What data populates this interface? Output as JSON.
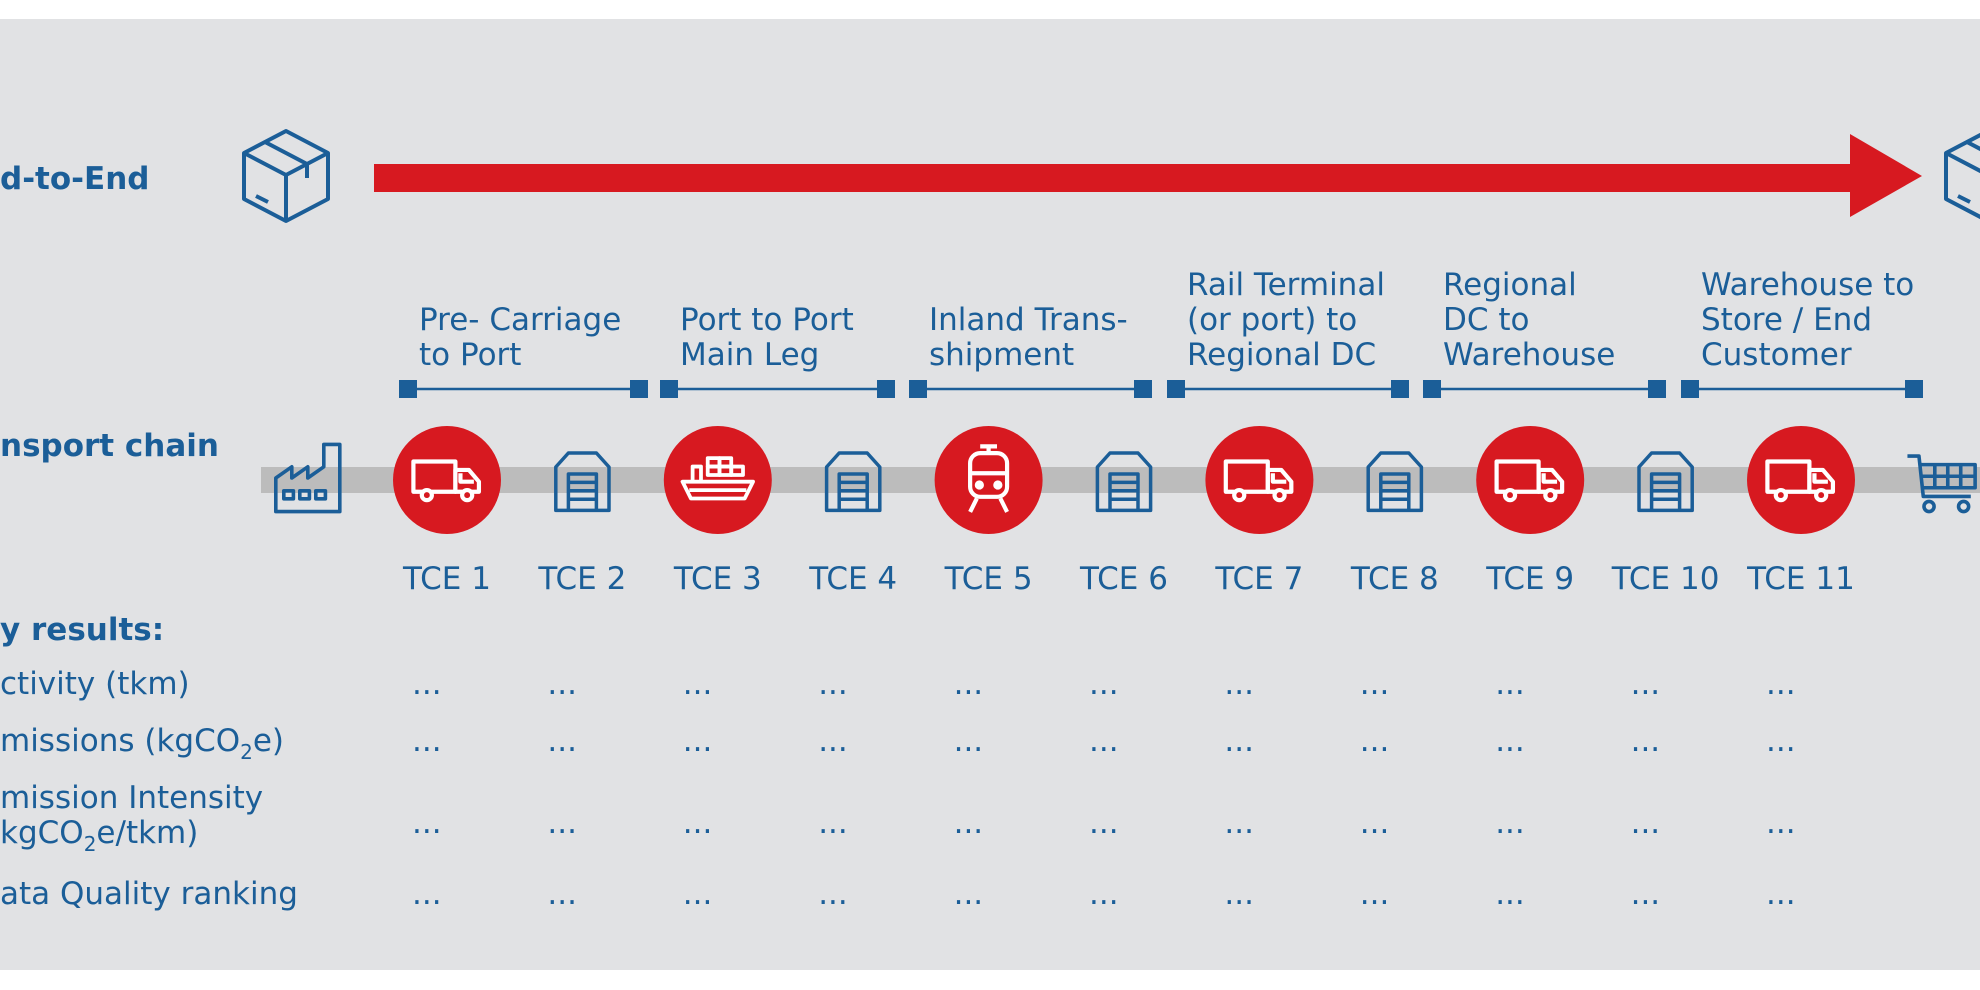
{
  "top": {
    "label": "d-to-End"
  },
  "chain": {
    "label": "nsport chain",
    "segments": [
      [
        "Pre- Carriage",
        "to Port"
      ],
      [
        "Port to Port",
        "Main Leg"
      ],
      [
        "Inland Trans-",
        "shipment"
      ],
      [
        "Rail Terminal",
        "(or port) to",
        "Regional DC"
      ],
      [
        "Regional",
        "DC to",
        "Warehouse"
      ],
      [
        "Warehouse to",
        "Store / End",
        "Customer"
      ]
    ],
    "elements": [
      "TCE 1",
      "TCE 2",
      "TCE 3",
      "TCE 4",
      "TCE 5",
      "TCE 6",
      "TCE 7",
      "TCE 8",
      "TCE 9",
      "TCE 10",
      "TCE 11"
    ]
  },
  "results": {
    "title": "y results:",
    "rows": [
      {
        "lines": [
          [
            "ctivity (tkm)"
          ]
        ],
        "values": [
          "...",
          "...",
          "...",
          "...",
          "...",
          "...",
          "...",
          "...",
          "...",
          "...",
          "..."
        ]
      },
      {
        "lines": [
          [
            "missions (kgCO",
            "2",
            "e)"
          ]
        ],
        "values": [
          "...",
          "...",
          "...",
          "...",
          "...",
          "...",
          "...",
          "...",
          "...",
          "...",
          "..."
        ]
      },
      {
        "lines": [
          [
            "mission Intensity"
          ],
          [
            "kgCO",
            "2",
            "e/tkm)"
          ]
        ],
        "values": [
          "...",
          "...",
          "...",
          "...",
          "...",
          "...",
          "...",
          "...",
          "...",
          "...",
          "..."
        ]
      },
      {
        "lines": [
          [
            "ata Quality ranking"
          ]
        ],
        "values": [
          "...",
          "...",
          "...",
          "...",
          "...",
          "...",
          "...",
          "...",
          "...",
          "...",
          "..."
        ]
      }
    ]
  }
}
